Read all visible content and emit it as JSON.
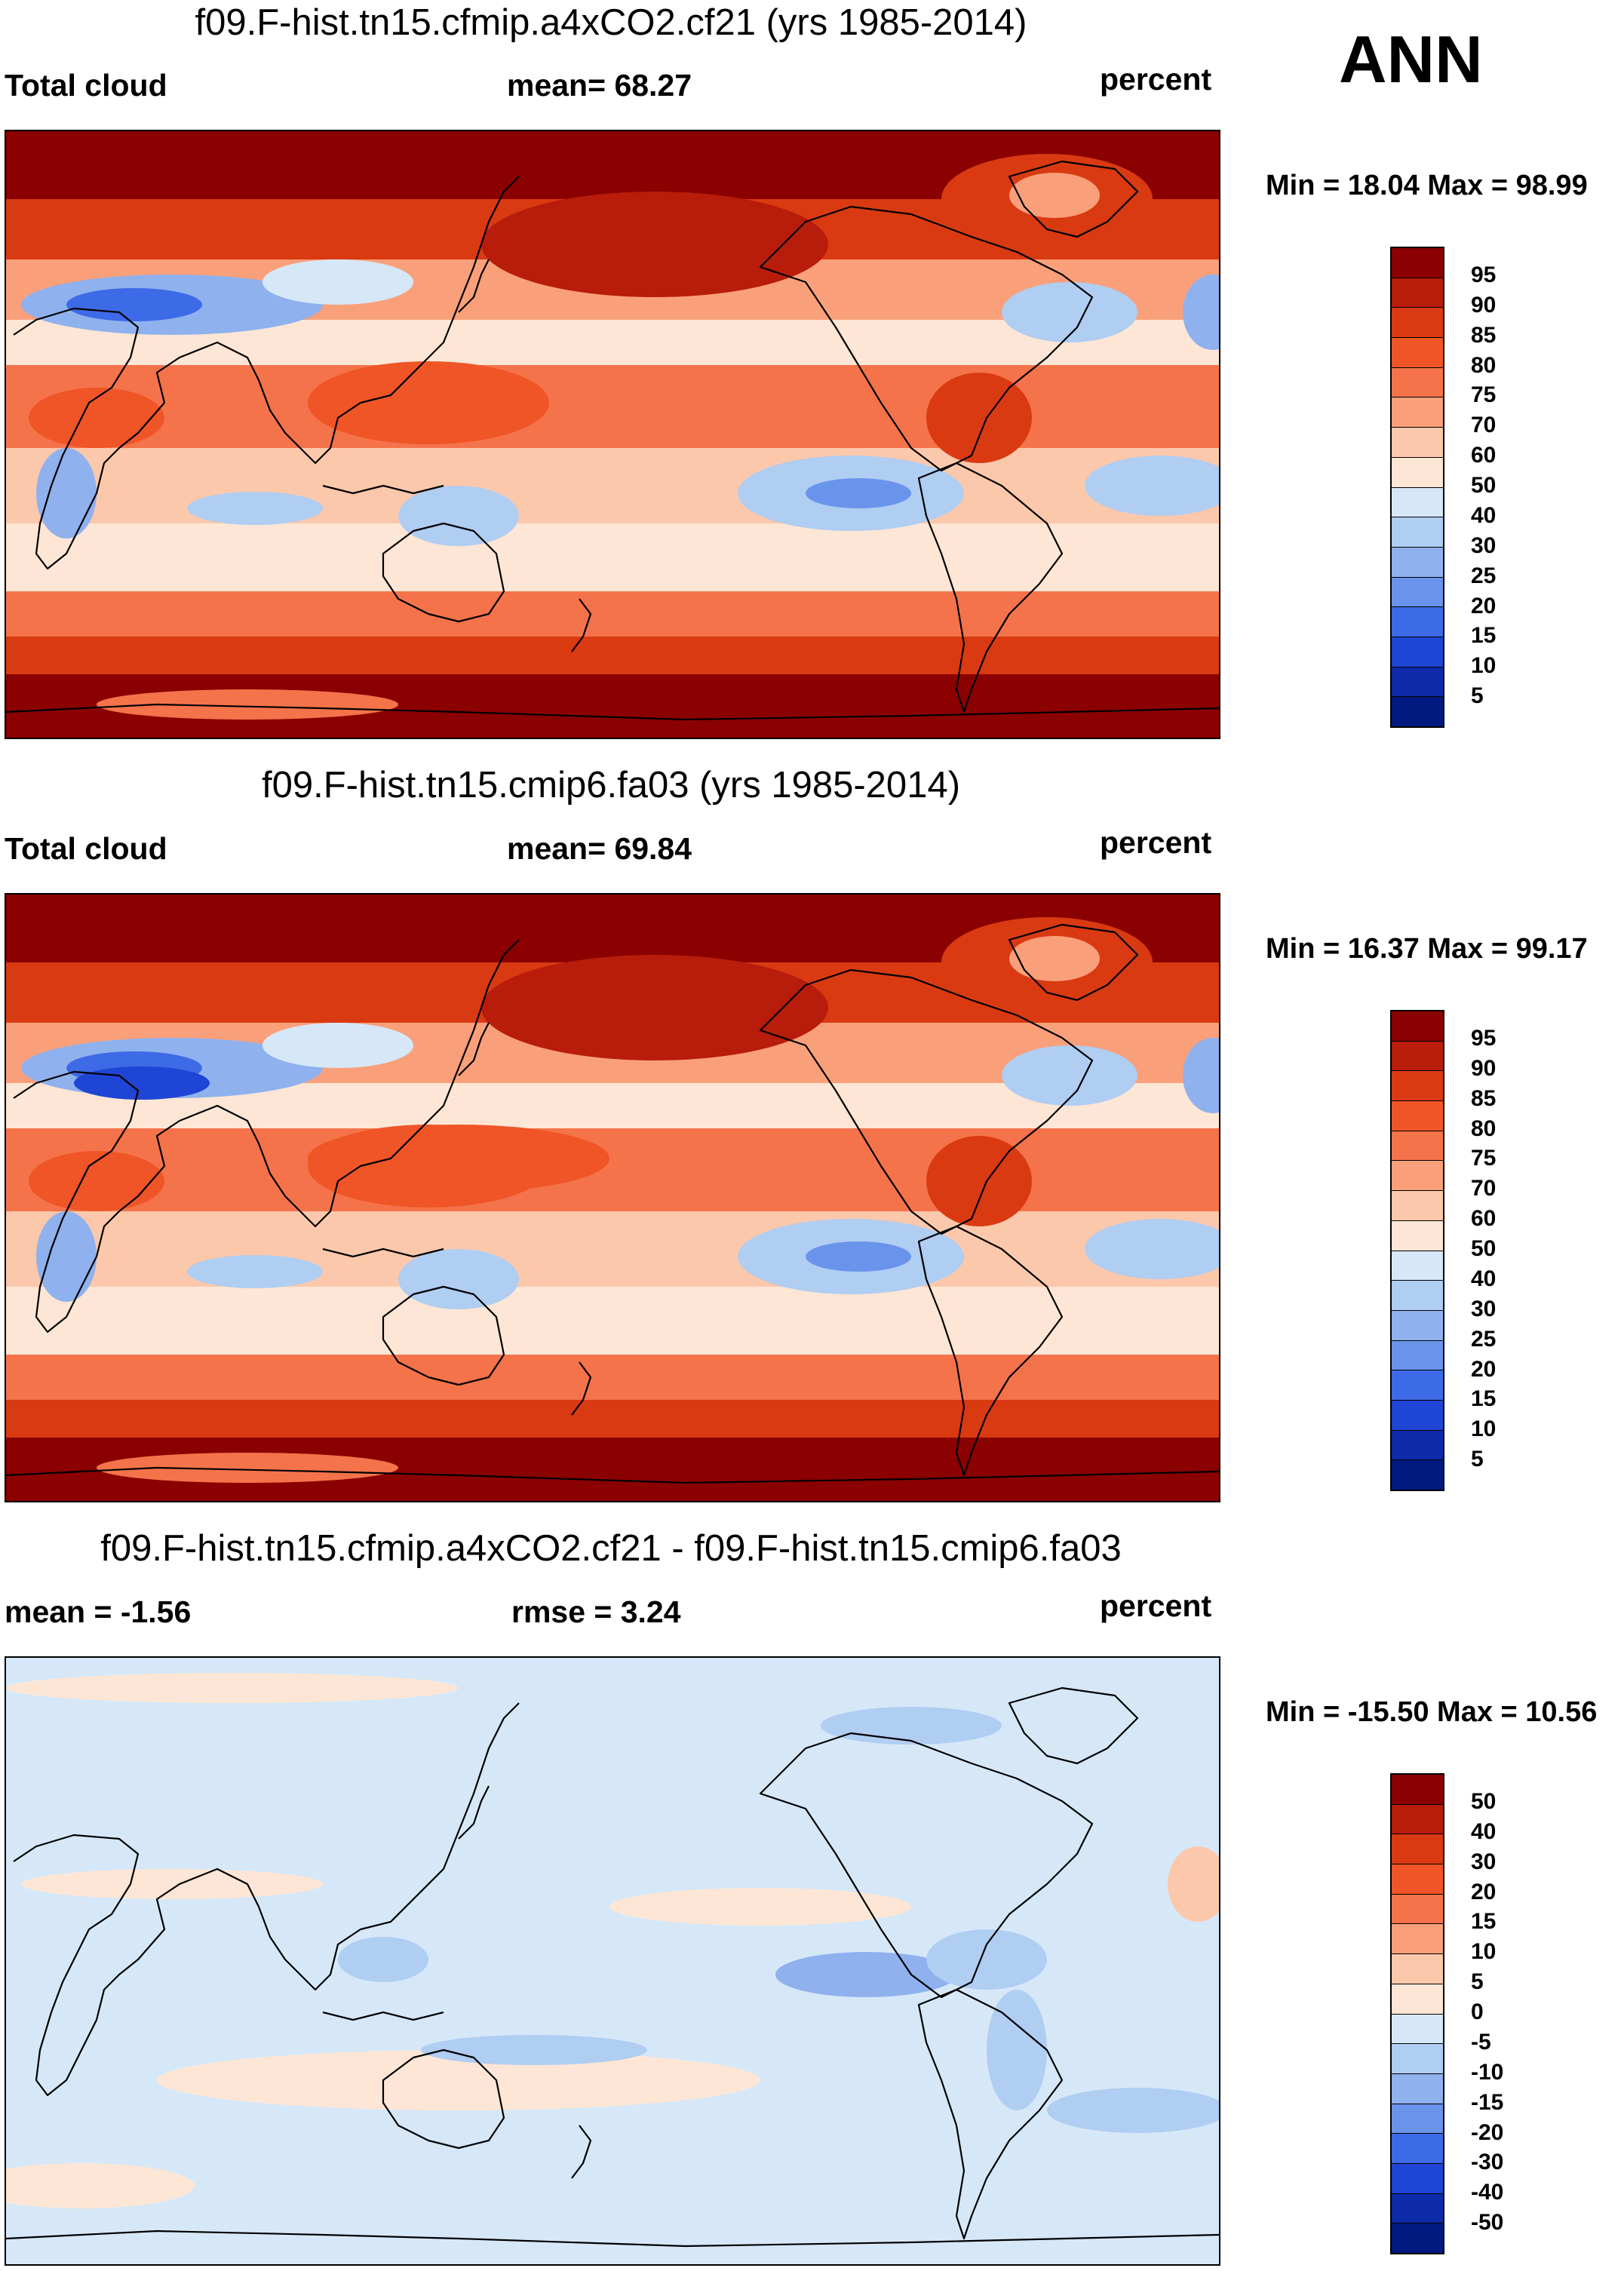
{
  "season": "ANN",
  "units": "percent",
  "panels": [
    {
      "id": "p1",
      "title": "f09.F-hist.tn15.cfmip.a4xCO2.cf21 (yrs 1985-2014)",
      "left_label": "Total cloud",
      "center_label": "mean=  68.27",
      "right_label": "percent",
      "minmax": "Min =  18.04 Max =  98.99",
      "colorbar_ticks": [
        "95",
        "90",
        "85",
        "80",
        "75",
        "70",
        "60",
        "50",
        "40",
        "30",
        "25",
        "20",
        "15",
        "10",
        "5"
      ],
      "colorbar_colors": [
        "#8b0000",
        "#b81c0a",
        "#d93a12",
        "#ef5526",
        "#f5734a",
        "#f9a07b",
        "#fcc8ab",
        "#fde6d5",
        "#d6e8f8",
        "#b0cdf2",
        "#8fb1ee",
        "#6a94eb",
        "#3d6ae6",
        "#1f45d4",
        "#0d2aa8",
        "#001a80"
      ],
      "field": "total"
    },
    {
      "id": "p2",
      "title": "f09.F-hist.tn15.cmip6.fa03 (yrs 1985-2014)",
      "left_label": "Total cloud",
      "center_label": "mean=  69.84",
      "right_label": "percent",
      "minmax": "Min =  16.37 Max =  99.17",
      "colorbar_ticks": [
        "95",
        "90",
        "85",
        "80",
        "75",
        "70",
        "60",
        "50",
        "40",
        "30",
        "25",
        "20",
        "15",
        "10",
        "5"
      ],
      "colorbar_colors": [
        "#8b0000",
        "#b81c0a",
        "#d93a12",
        "#ef5526",
        "#f5734a",
        "#f9a07b",
        "#fcc8ab",
        "#fde6d5",
        "#d6e8f8",
        "#b0cdf2",
        "#8fb1ee",
        "#6a94eb",
        "#3d6ae6",
        "#1f45d4",
        "#0d2aa8",
        "#001a80"
      ],
      "field": "total"
    },
    {
      "id": "p3",
      "title": "f09.F-hist.tn15.cfmip.a4xCO2.cf21 - f09.F-hist.tn15.cmip6.fa03",
      "left_label": "mean =  -1.56",
      "center_label": "rmse =    3.24",
      "right_label": "percent",
      "minmax": "Min = -15.50 Max =  10.56",
      "colorbar_ticks": [
        "50",
        "40",
        "30",
        "20",
        "15",
        "10",
        "5",
        "0",
        "-5",
        "-10",
        "-15",
        "-20",
        "-30",
        "-40",
        "-50"
      ],
      "colorbar_colors": [
        "#8b0000",
        "#b81c0a",
        "#d93a12",
        "#ef5526",
        "#f5734a",
        "#f9a07b",
        "#fcc8ab",
        "#fde6d5",
        "#d6e8f8",
        "#b0cdf2",
        "#8fb1ee",
        "#6a94eb",
        "#3d6ae6",
        "#1f45d4",
        "#0d2aa8",
        "#001a80"
      ],
      "field": "diff"
    }
  ]
}
